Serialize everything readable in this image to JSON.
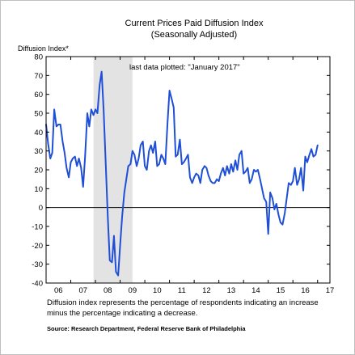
{
  "chart_data": {
    "type": "line",
    "title": "Current Prices Paid Diffusion Index",
    "subtitle": "(Seasonally Adjusted)",
    "ylabel": "Diffusion Index*",
    "xlabel": "",
    "ylim": [
      -40,
      80
    ],
    "yticks": [
      -40,
      -30,
      -20,
      -10,
      0,
      10,
      20,
      30,
      40,
      50,
      60,
      70,
      80
    ],
    "x_range": [
      2006.0,
      2017.5
    ],
    "xtick_labels": [
      "06",
      "07",
      "08",
      "09",
      "10",
      "11",
      "12",
      "13",
      "14",
      "15",
      "16",
      "17"
    ],
    "annotation": "last data plotted: \"January 2017\"",
    "shaded_recession": {
      "start": 2007.92,
      "end": 2009.5
    },
    "zero_line": true,
    "line_color": "#1f4fd6",
    "series": [
      {
        "x": [
          2006.0,
          2006.08,
          2006.17,
          2006.25,
          2006.33,
          2006.42,
          2006.5,
          2006.58,
          2006.67,
          2006.75,
          2006.83,
          2006.92,
          2007.0,
          2007.08,
          2007.17,
          2007.25,
          2007.33,
          2007.42,
          2007.5,
          2007.58,
          2007.67,
          2007.75,
          2007.83,
          2007.92,
          2008.0,
          2008.08,
          2008.17,
          2008.25,
          2008.33,
          2008.42,
          2008.5,
          2008.58,
          2008.67,
          2008.75,
          2008.83,
          2008.92,
          2009.0,
          2009.08,
          2009.17,
          2009.25,
          2009.33,
          2009.42,
          2009.5,
          2009.58,
          2009.67,
          2009.75,
          2009.83,
          2009.92,
          2010.0,
          2010.08,
          2010.17,
          2010.25,
          2010.33,
          2010.42,
          2010.5,
          2010.58,
          2010.67,
          2010.75,
          2010.83,
          2010.92,
          2011.0,
          2011.08,
          2011.17,
          2011.25,
          2011.33,
          2011.42,
          2011.5,
          2011.58,
          2011.67,
          2011.75,
          2011.83,
          2011.92,
          2012.0,
          2012.08,
          2012.17,
          2012.25,
          2012.33,
          2012.42,
          2012.5,
          2012.58,
          2012.67,
          2012.75,
          2012.83,
          2012.92,
          2013.0,
          2013.08,
          2013.17,
          2013.25,
          2013.33,
          2013.42,
          2013.5,
          2013.58,
          2013.67,
          2013.75,
          2013.83,
          2013.92,
          2014.0,
          2014.08,
          2014.17,
          2014.25,
          2014.33,
          2014.42,
          2014.5,
          2014.58,
          2014.67,
          2014.75,
          2014.83,
          2014.92,
          2015.0,
          2015.08,
          2015.17,
          2015.25,
          2015.33,
          2015.42,
          2015.5,
          2015.58,
          2015.67,
          2015.75,
          2015.83,
          2015.92,
          2016.0,
          2016.08,
          2016.17,
          2016.25,
          2016.33,
          2016.42,
          2016.5,
          2016.58,
          2016.67,
          2016.75,
          2016.83,
          2016.92,
          2017.0
        ],
        "values": [
          44,
          34,
          26,
          29,
          52,
          43,
          44,
          44,
          35,
          29,
          21,
          16,
          24,
          26,
          27,
          22,
          26,
          21,
          11,
          27,
          50,
          43,
          52,
          49,
          52,
          50,
          65,
          72,
          52,
          22,
          -5,
          -28,
          -29,
          -15,
          -34,
          -36,
          -20,
          -5,
          8,
          15,
          22,
          23,
          30,
          28,
          22,
          26,
          33,
          35,
          22,
          20,
          30,
          33,
          29,
          35,
          22,
          23,
          28,
          26,
          23,
          45,
          62,
          58,
          53,
          27,
          28,
          36,
          23,
          24,
          26,
          28,
          16,
          13,
          16,
          18,
          17,
          13,
          20,
          22,
          21,
          17,
          14,
          13,
          13,
          15,
          14,
          18,
          21,
          17,
          22,
          18,
          23,
          19,
          25,
          20,
          28,
          30,
          18,
          19,
          21,
          13,
          15,
          20,
          19,
          20,
          15,
          10,
          5,
          3,
          -14,
          8,
          5,
          -1,
          2,
          -4,
          -8,
          -9,
          -3,
          5,
          13,
          12,
          14,
          21,
          12,
          15,
          21,
          9,
          27,
          24,
          28,
          31,
          27,
          28,
          33
        ]
      }
    ]
  },
  "caption": "Diffusion index represents the percentage of respondents indicating an increase minus the percentage indicating a decrease.",
  "source": "Source: Research Department, Federal Reserve Bank of Philadelphia"
}
